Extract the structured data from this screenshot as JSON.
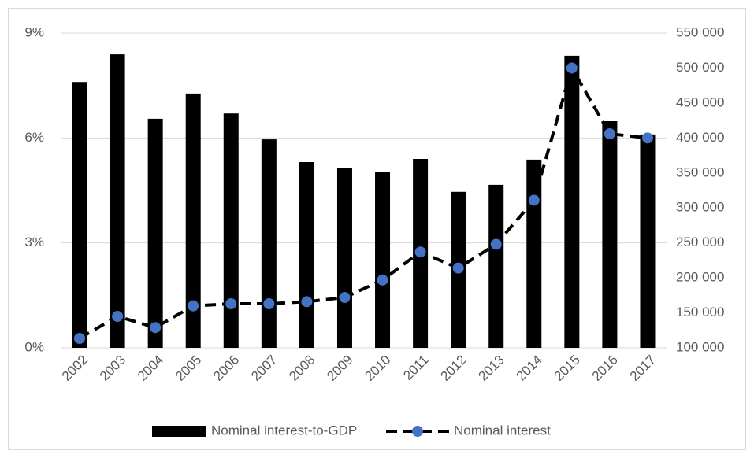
{
  "chart_data": {
    "type": "bar-line",
    "categories": [
      "2002",
      "2003",
      "2004",
      "2005",
      "2006",
      "2007",
      "2008",
      "2009",
      "2010",
      "2011",
      "2012",
      "2013",
      "2014",
      "2015",
      "2016",
      "2017"
    ],
    "series": [
      {
        "name": "Nominal interest-to-GDP",
        "type": "bar",
        "color": "#000000",
        "values": [
          7.6,
          8.39,
          6.55,
          7.27,
          6.7,
          5.96,
          5.31,
          5.13,
          5.02,
          5.4,
          4.46,
          4.66,
          5.38,
          8.35,
          6.48,
          6.1
        ]
      },
      {
        "name": "Nominal interest",
        "type": "line",
        "axis": "y2",
        "color": "#000000",
        "marker_color": "#4472c4",
        "values": [
          113500,
          145000,
          129000,
          160000,
          163000,
          163000,
          166000,
          172000,
          197000,
          237000,
          214000,
          248000,
          311000,
          500000,
          406000,
          400000
        ]
      }
    ],
    "ylim": [
      0,
      9
    ],
    "yticks": [
      {
        "value": 0,
        "label": "0%"
      },
      {
        "value": 3,
        "label": "3%"
      },
      {
        "value": 6,
        "label": "6%"
      },
      {
        "value": 9,
        "label": "9%"
      }
    ],
    "y2lim": [
      100000,
      550000
    ],
    "y2ticks": [
      {
        "value": 100000,
        "label": "100 000"
      },
      {
        "value": 150000,
        "label": "150 000"
      },
      {
        "value": 200000,
        "label": "200 000"
      },
      {
        "value": 250000,
        "label": "250 000"
      },
      {
        "value": 300000,
        "label": "300 000"
      },
      {
        "value": 350000,
        "label": "350 000"
      },
      {
        "value": 400000,
        "label": "400 000"
      },
      {
        "value": 450000,
        "label": "450 000"
      },
      {
        "value": 500000,
        "label": "500 000"
      },
      {
        "value": 550000,
        "label": "550 000"
      }
    ],
    "grid": true,
    "legend": "bottom"
  }
}
